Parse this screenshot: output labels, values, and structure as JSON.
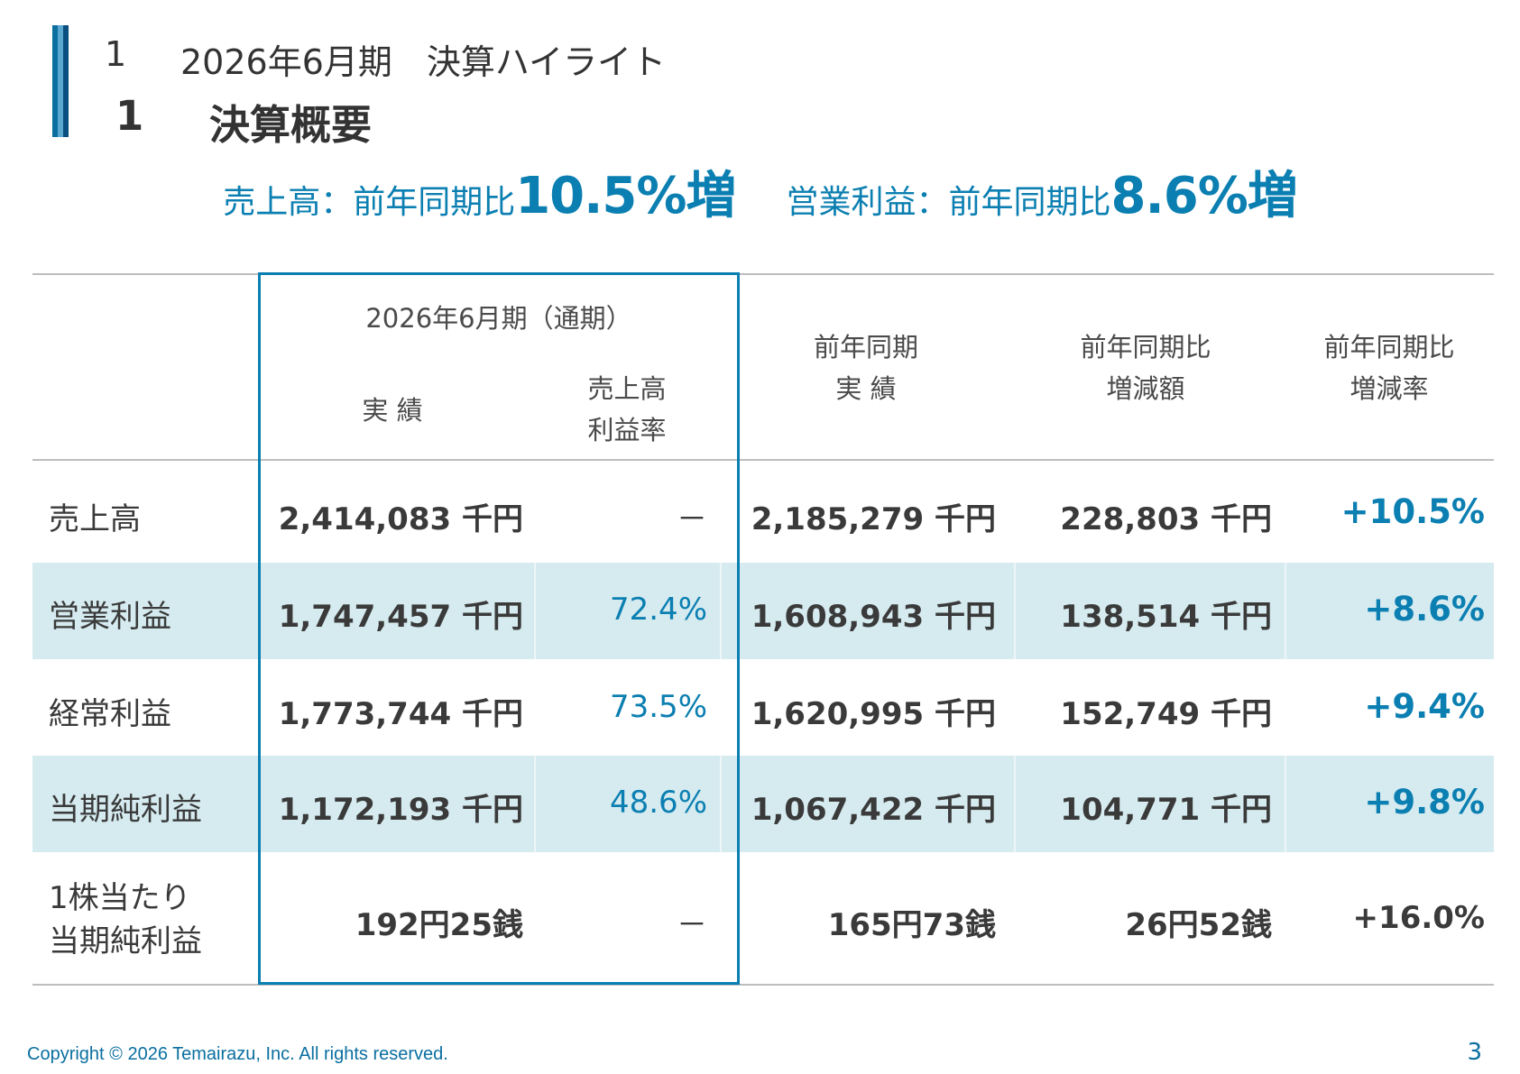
{
  "header": {
    "section_number": "1",
    "section_title": "2026年6月期　決算ハイライト",
    "subsection_number": "1",
    "subsection_title": "決算概要"
  },
  "headline": {
    "sales_label": "売上高：前年同期比",
    "sales_value": "10.5%増",
    "op_label": "営業利益：前年同期比",
    "op_value": "8.6%増"
  },
  "table": {
    "group_header": "2026年6月期（通期）",
    "col_actual": "実 績",
    "col_ratio_line1": "売上高",
    "col_ratio_line2": "利益率",
    "col_prev_line1": "前年同期",
    "col_prev_line2": "実 績",
    "col_diff_line1": "前年同期比",
    "col_diff_line2": "増減額",
    "col_rate_line1": "前年同期比",
    "col_rate_line2": "増減率",
    "rows": [
      {
        "label": "売上高",
        "actual": "2,414,083 千円",
        "ratio": "－",
        "prev": "2,185,279 千円",
        "diff": "228,803 千円",
        "rate": "+10.5%"
      },
      {
        "label": "営業利益",
        "actual": "1,747,457 千円",
        "ratio": "72.4%",
        "prev": "1,608,943 千円",
        "diff": "138,514 千円",
        "rate": "+8.6%"
      },
      {
        "label": "経常利益",
        "actual": "1,773,744 千円",
        "ratio": "73.5%",
        "prev": "1,620,995 千円",
        "diff": "152,749 千円",
        "rate": "+9.4%"
      },
      {
        "label": "当期純利益",
        "actual": "1,172,193 千円",
        "ratio": "48.6%",
        "prev": "1,067,422 千円",
        "diff": "104,771 千円",
        "rate": "+9.8%"
      },
      {
        "label_line1": "1株当たり",
        "label_line2": "当期純利益",
        "actual": "192円25銭",
        "ratio": "－",
        "prev": "165円73銭",
        "diff": "26円52銭",
        "rate": "+16.0%"
      }
    ]
  },
  "footer": {
    "copyright": "Copyright © 2026 Temairazu, Inc. All rights reserved.",
    "page_number": "3"
  },
  "colors": {
    "accent": "#0b7fb1",
    "band": "#d6ebf0",
    "rule": "#bdbdbd"
  }
}
